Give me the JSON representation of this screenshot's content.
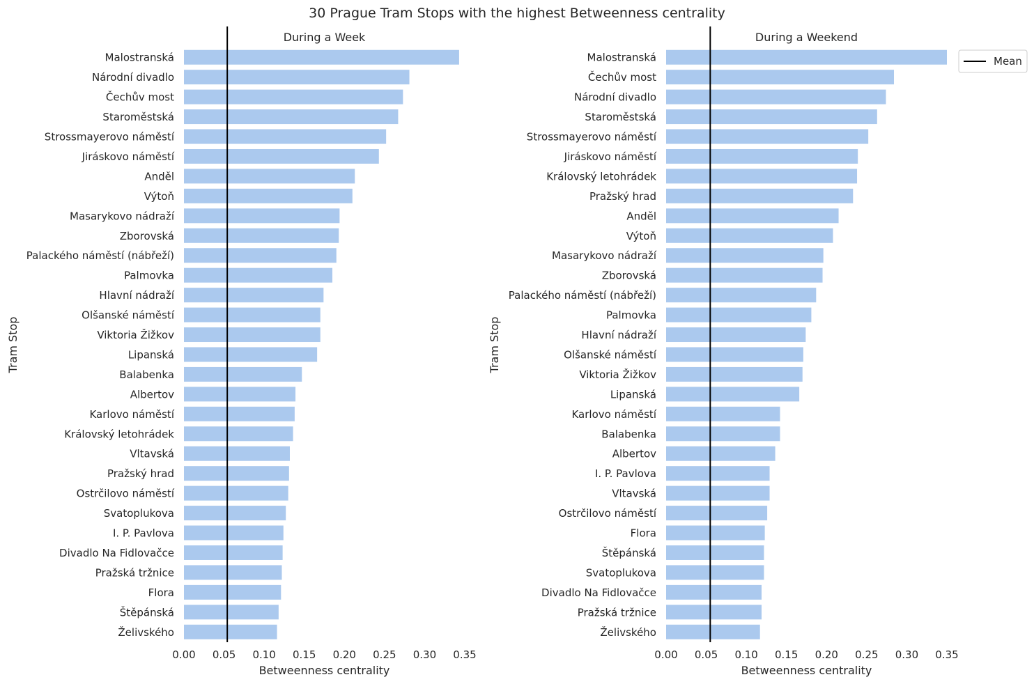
{
  "figure": {
    "title": "30 Prague Tram Stops with the highest Betweenness centrality",
    "legend": {
      "label": "Mean",
      "placement": "top-right",
      "line_color": "#000000"
    }
  },
  "colors": {
    "bar": "#abc9ee",
    "mean_line": "#000000",
    "text": "#262626"
  },
  "chart_data": [
    {
      "type": "bar",
      "orientation": "horizontal",
      "title": "During a Week",
      "xlabel": "Betweenness centrality",
      "ylabel": "Tram Stop",
      "xlim": [
        0,
        0.35
      ],
      "xticks": [
        "0.00",
        "0.05",
        "0.10",
        "0.15",
        "0.20",
        "0.25",
        "0.30",
        "0.35"
      ],
      "grid": false,
      "mean": 0.054,
      "categories": [
        "Malostranská",
        "Národní divadlo",
        "Čechův most",
        "Staroměstská",
        "Strossmayerovo náměstí",
        "Jiráskovo náměstí",
        "Anděl",
        "Výtoň",
        "Masarykovo nádraží",
        "Zborovská",
        "Palackého náměstí (nábřeží)",
        "Palmovka",
        "Hlavní nádraží",
        "Olšanské náměstí",
        "Viktoria Žižkov",
        "Lipanská",
        "Balabenka",
        "Albertov",
        "Karlovo náměstí",
        "Královský letohrádek",
        "Vltavská",
        "Pražský hrad",
        "Ostrčilovo náměstí",
        "Svatoplukova",
        "I. P. Pavlova",
        "Divadlo Na Fidlovačce",
        "Pražská tržnice",
        "Flora",
        "Štěpánská",
        "Želivského"
      ],
      "values": [
        0.343,
        0.281,
        0.273,
        0.267,
        0.252,
        0.243,
        0.213,
        0.21,
        0.194,
        0.193,
        0.19,
        0.185,
        0.174,
        0.17,
        0.17,
        0.166,
        0.147,
        0.139,
        0.138,
        0.136,
        0.132,
        0.131,
        0.13,
        0.127,
        0.124,
        0.123,
        0.122,
        0.121,
        0.118,
        0.116
      ]
    },
    {
      "type": "bar",
      "orientation": "horizontal",
      "title": "During a Weekend",
      "xlabel": "Betweenness centrality",
      "ylabel": "Tram Stop",
      "xlim": [
        0,
        0.35
      ],
      "xticks": [
        "0.00",
        "0.05",
        "0.10",
        "0.15",
        "0.20",
        "0.25",
        "0.30",
        "0.35"
      ],
      "grid": false,
      "mean": 0.055,
      "categories": [
        "Malostranská",
        "Čechův most",
        "Národní divadlo",
        "Staroměstská",
        "Strossmayerovo náměstí",
        "Jiráskovo náměstí",
        "Královský letohrádek",
        "Pražský hrad",
        "Anděl",
        "Výtoň",
        "Masarykovo nádraží",
        "Zborovská",
        "Palackého náměstí (nábřeží)",
        "Palmovka",
        "Hlavní nádraží",
        "Olšanské náměstí",
        "Viktoria Žižkov",
        "Lipanská",
        "Karlovo náměstí",
        "Balabenka",
        "Albertov",
        "I. P. Pavlova",
        "Vltavská",
        "Ostrčilovo náměstí",
        "Flora",
        "Štěpánská",
        "Svatoplukova",
        "Divadlo Na Fidlovačce",
        "Pražská tržnice",
        "Želivského"
      ],
      "values": [
        0.35,
        0.284,
        0.274,
        0.263,
        0.252,
        0.239,
        0.238,
        0.233,
        0.215,
        0.208,
        0.196,
        0.195,
        0.187,
        0.181,
        0.174,
        0.171,
        0.17,
        0.166,
        0.142,
        0.142,
        0.136,
        0.129,
        0.129,
        0.126,
        0.123,
        0.122,
        0.122,
        0.119,
        0.119,
        0.117
      ]
    }
  ]
}
